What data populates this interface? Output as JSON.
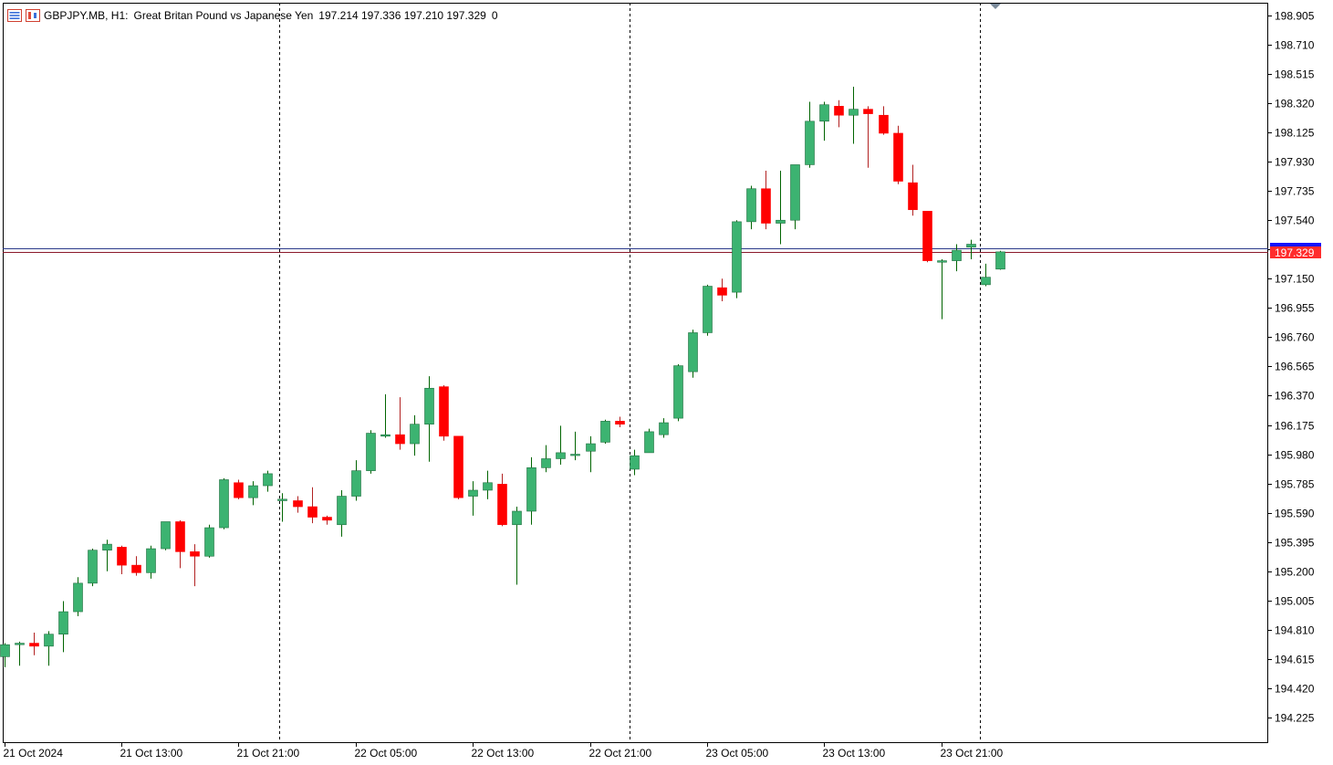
{
  "header": {
    "symbol": "GBPJPY.MB, H1:",
    "description": "Great Britan Pound vs Japanese Yen",
    "ohlc": "197.214 197.336 197.210 197.329",
    "extra": "0"
  },
  "icons": {
    "menu": "chart-menu-icon",
    "template": "chart-template-icon",
    "scroll_marker": "scroll-marker-icon"
  },
  "colors": {
    "bull": "#3cb371",
    "bear": "#ff0000",
    "wick_bull": "#006400",
    "wick_bear": "#b22222",
    "bid_line": "#8b1a2b",
    "ask_line": "#2a3a8a",
    "price_tag": "#ff2d2d",
    "price_tag_top": "#1414ff",
    "grid_sep": "#000000",
    "axis": "#000000"
  },
  "current_price_label": "197.329",
  "chart_data": {
    "type": "candlestick",
    "title": "GBPJPY.MB, H1:  Great Britan Pound vs Japanese Yen",
    "timeframe": "H1",
    "ylim": [
      194.06,
      198.99
    ],
    "y_ticks": [
      "198.905",
      "198.710",
      "198.515",
      "198.320",
      "198.125",
      "197.930",
      "197.735",
      "197.540",
      "197.345",
      "197.150",
      "196.955",
      "196.760",
      "196.565",
      "196.370",
      "196.175",
      "195.980",
      "195.785",
      "195.590",
      "195.395",
      "195.200",
      "195.005",
      "194.810",
      "194.615",
      "194.420",
      "194.225"
    ],
    "x_ticks": [
      "21 Oct 2024",
      "21 Oct 13:00",
      "21 Oct 21:00",
      "22 Oct 05:00",
      "22 Oct 13:00",
      "22 Oct 21:00",
      "23 Oct 05:00",
      "23 Oct 13:00",
      "23 Oct 21:00"
    ],
    "bid_price": 197.329,
    "ask_price": 197.355,
    "candles": [
      [
        194.63,
        194.72,
        194.56,
        194.71
      ],
      [
        194.71,
        194.73,
        194.57,
        194.72
      ],
      [
        194.72,
        194.79,
        194.64,
        194.7
      ],
      [
        194.7,
        194.8,
        194.57,
        194.78
      ],
      [
        194.78,
        195.0,
        194.66,
        194.93
      ],
      [
        194.93,
        195.16,
        194.9,
        195.12
      ],
      [
        195.12,
        195.35,
        195.1,
        195.34
      ],
      [
        195.34,
        195.41,
        195.2,
        195.38
      ],
      [
        195.36,
        195.37,
        195.18,
        195.24
      ],
      [
        195.24,
        195.3,
        195.17,
        195.19
      ],
      [
        195.19,
        195.37,
        195.15,
        195.35
      ],
      [
        195.35,
        195.53,
        195.34,
        195.53
      ],
      [
        195.53,
        195.54,
        195.22,
        195.33
      ],
      [
        195.33,
        195.38,
        195.1,
        195.3
      ],
      [
        195.3,
        195.51,
        195.29,
        195.49
      ],
      [
        195.49,
        195.82,
        195.48,
        195.81
      ],
      [
        195.79,
        195.81,
        195.68,
        195.69
      ],
      [
        195.69,
        195.8,
        195.64,
        195.77
      ],
      [
        195.77,
        195.87,
        195.73,
        195.85
      ],
      [
        195.67,
        195.72,
        195.53,
        195.68
      ],
      [
        195.67,
        195.7,
        195.59,
        195.63
      ],
      [
        195.63,
        195.76,
        195.52,
        195.56
      ],
      [
        195.56,
        195.57,
        195.51,
        195.54
      ],
      [
        195.51,
        195.74,
        195.43,
        195.7
      ],
      [
        195.7,
        195.94,
        195.67,
        195.87
      ],
      [
        195.87,
        196.14,
        195.85,
        196.12
      ],
      [
        196.1,
        196.38,
        196.09,
        196.11
      ],
      [
        196.11,
        196.36,
        196.01,
        196.05
      ],
      [
        196.05,
        196.24,
        195.97,
        196.18
      ],
      [
        196.18,
        196.5,
        195.93,
        196.42
      ],
      [
        196.43,
        196.44,
        196.07,
        196.1
      ],
      [
        196.1,
        196.1,
        195.68,
        195.69
      ],
      [
        195.7,
        195.8,
        195.57,
        195.74
      ],
      [
        195.74,
        195.87,
        195.68,
        195.79
      ],
      [
        195.78,
        195.85,
        195.5,
        195.51
      ],
      [
        195.51,
        195.63,
        195.11,
        195.6
      ],
      [
        195.6,
        195.96,
        195.51,
        195.89
      ],
      [
        195.89,
        196.04,
        195.86,
        195.95
      ],
      [
        195.95,
        196.17,
        195.91,
        195.99
      ],
      [
        195.98,
        196.13,
        195.94,
        195.98
      ],
      [
        196.0,
        196.1,
        195.86,
        196.05
      ],
      [
        196.06,
        196.21,
        196.05,
        196.2
      ],
      [
        196.2,
        196.23,
        196.16,
        196.18
      ],
      [
        195.88,
        196.01,
        195.84,
        195.97
      ],
      [
        195.99,
        196.15,
        195.99,
        196.13
      ],
      [
        196.11,
        196.22,
        196.09,
        196.19
      ],
      [
        196.22,
        196.58,
        196.2,
        196.57
      ],
      [
        196.53,
        196.81,
        196.49,
        196.79
      ],
      [
        196.79,
        197.11,
        196.77,
        197.1
      ],
      [
        197.09,
        197.15,
        197.0,
        197.04
      ],
      [
        197.06,
        197.54,
        197.02,
        197.53
      ],
      [
        197.53,
        197.77,
        197.48,
        197.75
      ],
      [
        197.75,
        197.87,
        197.48,
        197.52
      ],
      [
        197.52,
        197.87,
        197.38,
        197.54
      ],
      [
        197.54,
        197.91,
        197.48,
        197.91
      ],
      [
        197.91,
        198.33,
        197.89,
        198.2
      ],
      [
        198.2,
        198.33,
        198.07,
        198.31
      ],
      [
        198.3,
        198.34,
        198.16,
        198.24
      ],
      [
        198.24,
        198.43,
        198.05,
        198.28
      ],
      [
        198.28,
        198.3,
        197.89,
        198.25
      ],
      [
        198.24,
        198.3,
        198.11,
        198.12
      ],
      [
        198.12,
        198.17,
        197.78,
        197.8
      ],
      [
        197.79,
        197.91,
        197.57,
        197.61
      ],
      [
        197.6,
        197.6,
        197.26,
        197.27
      ],
      [
        197.26,
        197.28,
        196.88,
        197.27
      ],
      [
        197.27,
        197.38,
        197.2,
        197.34
      ],
      [
        197.36,
        197.41,
        197.28,
        197.38
      ],
      [
        197.11,
        197.25,
        197.1,
        197.16
      ],
      [
        197.214,
        197.336,
        197.21,
        197.329
      ]
    ]
  }
}
